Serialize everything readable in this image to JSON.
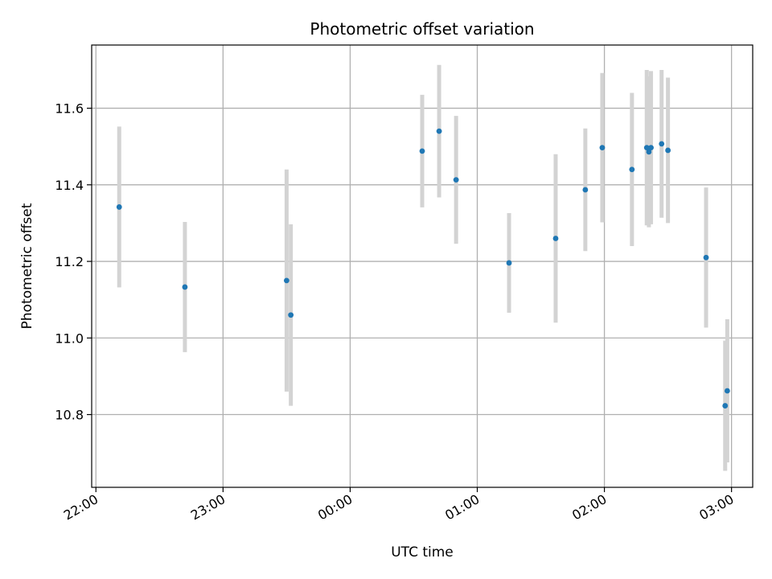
{
  "chart_data": {
    "type": "scatter",
    "title": "Photometric offset variation",
    "xlabel": "UTC time",
    "ylabel": "Photometric offset",
    "x_ticks": [
      "22:00",
      "23:00",
      "00:00",
      "01:00",
      "02:00",
      "03:00"
    ],
    "y_ticks": [
      "10.8",
      "11.0",
      "11.2",
      "11.4",
      "11.6"
    ],
    "xlim": [
      "21:58",
      "03:10"
    ],
    "ylim": [
      10.61,
      11.765
    ],
    "grid": true,
    "colors": {
      "points": "#1f77b4",
      "errorbars": "#d3d3d3",
      "grid": "#b0b0b0"
    },
    "points": [
      {
        "x": "22:11",
        "y": 11.342,
        "err": 0.21
      },
      {
        "x": "22:42",
        "y": 11.133,
        "err": 0.17
      },
      {
        "x": "23:30",
        "y": 11.15,
        "err": 0.29
      },
      {
        "x": "23:32",
        "y": 11.06,
        "err": 0.237
      },
      {
        "x": "00:34",
        "y": 11.488,
        "err": 0.147
      },
      {
        "x": "00:42",
        "y": 11.54,
        "err": 0.173
      },
      {
        "x": "00:50",
        "y": 11.413,
        "err": 0.167
      },
      {
        "x": "01:15",
        "y": 11.196,
        "err": 0.13
      },
      {
        "x": "01:37",
        "y": 11.26,
        "err": 0.22
      },
      {
        "x": "01:51",
        "y": 11.387,
        "err": 0.16
      },
      {
        "x": "01:59",
        "y": 11.497,
        "err": 0.195
      },
      {
        "x": "02:13",
        "y": 11.44,
        "err": 0.2
      },
      {
        "x": "02:20",
        "y": 11.497,
        "err": 0.203
      },
      {
        "x": "02:21",
        "y": 11.486,
        "err": 0.197
      },
      {
        "x": "02:22",
        "y": 11.497,
        "err": 0.2
      },
      {
        "x": "02:27",
        "y": 11.507,
        "err": 0.193
      },
      {
        "x": "02:30",
        "y": 11.49,
        "err": 0.19
      },
      {
        "x": "02:48",
        "y": 11.21,
        "err": 0.183
      },
      {
        "x": "02:57",
        "y": 10.823,
        "err": 0.17
      },
      {
        "x": "02:58",
        "y": 10.862,
        "err": 0.187
      }
    ]
  }
}
